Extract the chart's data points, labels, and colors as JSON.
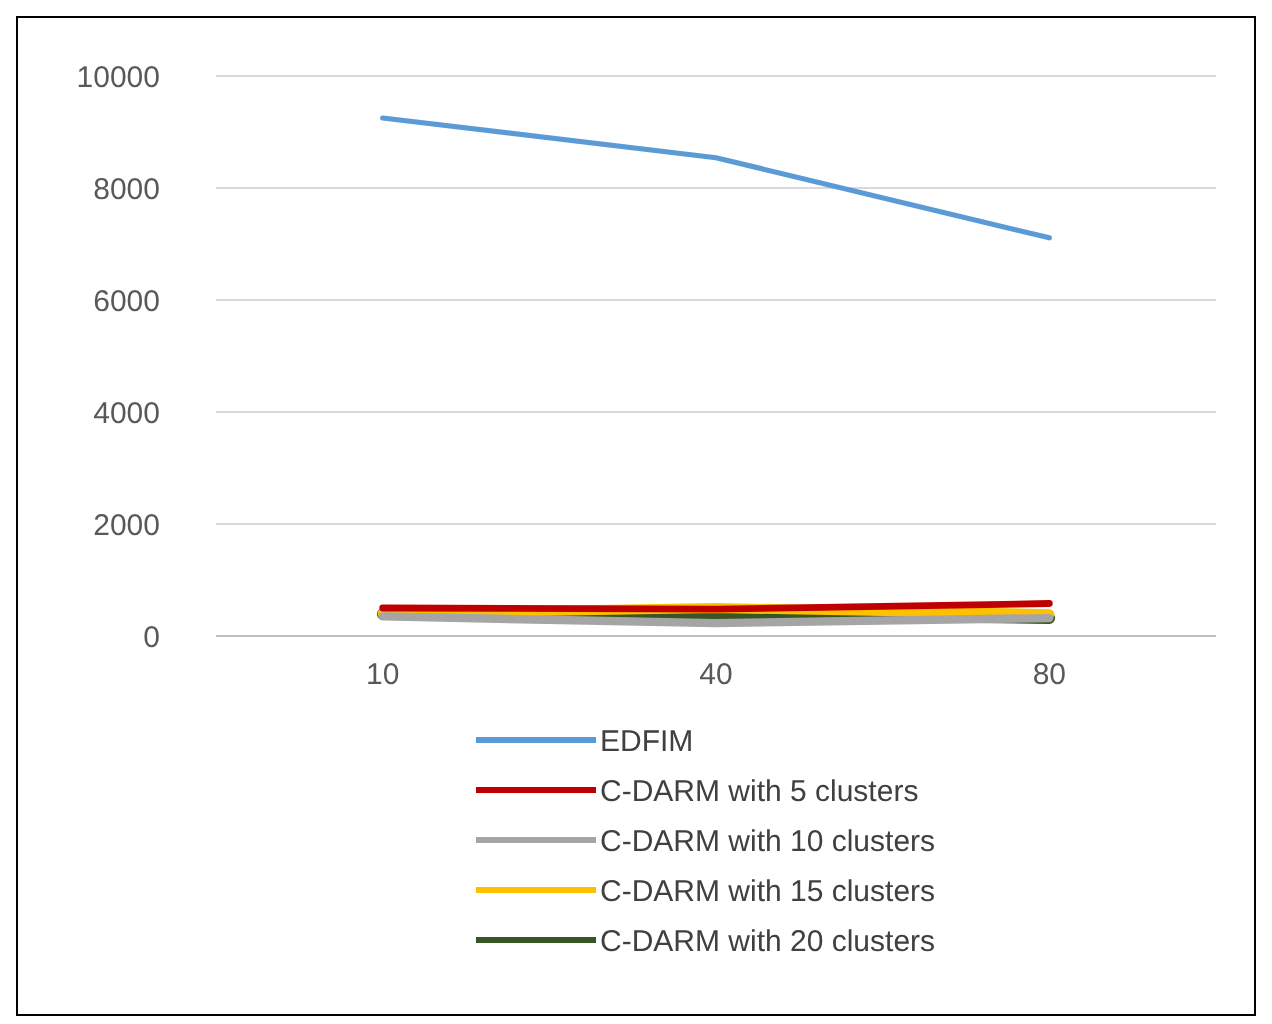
{
  "chart_data": {
    "type": "line",
    "categories": [
      "10",
      "40",
      "80"
    ],
    "ylim": [
      0,
      10000
    ],
    "yticks": [
      0,
      2000,
      4000,
      6000,
      8000,
      10000
    ],
    "grid": "y",
    "legend": "bottom",
    "series": [
      {
        "name": "EDFIM",
        "color": "#5b9bd5",
        "values": [
          9250,
          8540,
          7110
        ]
      },
      {
        "name": "C-DARM with 5 clusters",
        "color": "#c00000",
        "values": [
          500,
          480,
          580
        ]
      },
      {
        "name": "C-DARM with 10 clusters",
        "color": "#a5a5a5",
        "values": [
          350,
          230,
          320
        ]
      },
      {
        "name": "C-DARM with 15 clusters",
        "color": "#ffc000",
        "values": [
          400,
          500,
          390
        ]
      },
      {
        "name": "C-DARM with 20 clusters",
        "color": "#375623",
        "values": [
          390,
          400,
          320
        ]
      }
    ]
  }
}
